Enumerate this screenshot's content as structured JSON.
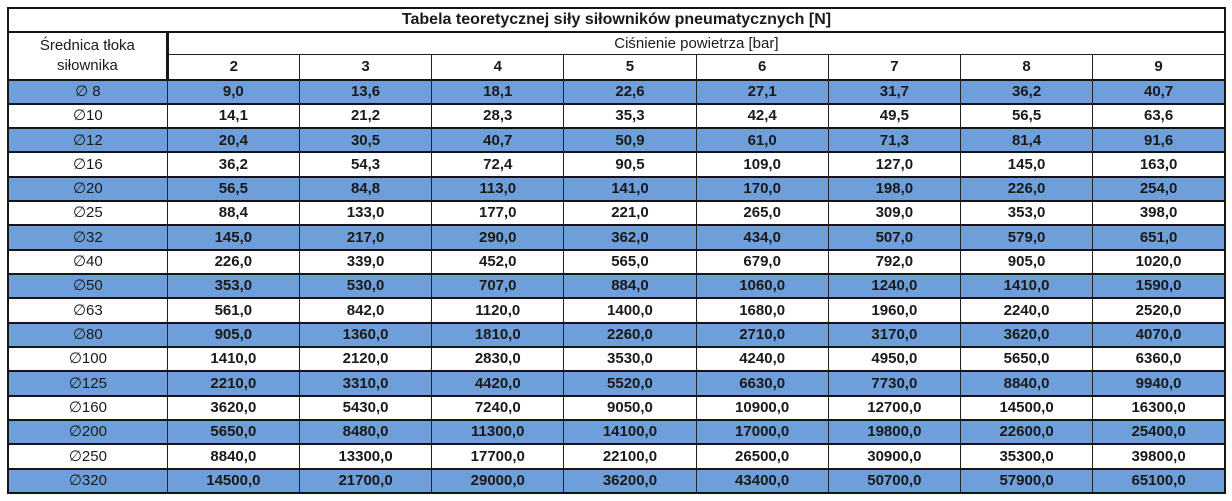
{
  "colors": {
    "row_highlight": "#6E9FDA",
    "border": "#151515",
    "text": "#1a1a1a",
    "background": "#ffffff"
  },
  "chart_data": {
    "type": "table",
    "title": "Tabela teoretycznej siły siłowników pneumatycznych [N]",
    "row_axis_label": "Średnica tłoka siłownika",
    "col_axis_label": "Ciśnienie powietrza [bar]",
    "columns": [
      "2",
      "3",
      "4",
      "5",
      "6",
      "7",
      "8",
      "9"
    ],
    "rows": [
      {
        "label": "∅ 8",
        "highlighted": true,
        "values": [
          "9,0",
          "13,6",
          "18,1",
          "22,6",
          "27,1",
          "31,7",
          "36,2",
          "40,7"
        ]
      },
      {
        "label": "∅10",
        "highlighted": false,
        "values": [
          "14,1",
          "21,2",
          "28,3",
          "35,3",
          "42,4",
          "49,5",
          "56,5",
          "63,6"
        ]
      },
      {
        "label": "∅12",
        "highlighted": true,
        "values": [
          "20,4",
          "30,5",
          "40,7",
          "50,9",
          "61,0",
          "71,3",
          "81,4",
          "91,6"
        ]
      },
      {
        "label": "∅16",
        "highlighted": false,
        "values": [
          "36,2",
          "54,3",
          "72,4",
          "90,5",
          "109,0",
          "127,0",
          "145,0",
          "163,0"
        ]
      },
      {
        "label": "∅20",
        "highlighted": true,
        "values": [
          "56,5",
          "84,8",
          "113,0",
          "141,0",
          "170,0",
          "198,0",
          "226,0",
          "254,0"
        ]
      },
      {
        "label": "∅25",
        "highlighted": false,
        "values": [
          "88,4",
          "133,0",
          "177,0",
          "221,0",
          "265,0",
          "309,0",
          "353,0",
          "398,0"
        ]
      },
      {
        "label": "∅32",
        "highlighted": true,
        "values": [
          "145,0",
          "217,0",
          "290,0",
          "362,0",
          "434,0",
          "507,0",
          "579,0",
          "651,0"
        ]
      },
      {
        "label": "∅40",
        "highlighted": false,
        "values": [
          "226,0",
          "339,0",
          "452,0",
          "565,0",
          "679,0",
          "792,0",
          "905,0",
          "1020,0"
        ]
      },
      {
        "label": "∅50",
        "highlighted": true,
        "values": [
          "353,0",
          "530,0",
          "707,0",
          "884,0",
          "1060,0",
          "1240,0",
          "1410,0",
          "1590,0"
        ]
      },
      {
        "label": "∅63",
        "highlighted": false,
        "values": [
          "561,0",
          "842,0",
          "1120,0",
          "1400,0",
          "1680,0",
          "1960,0",
          "2240,0",
          "2520,0"
        ]
      },
      {
        "label": "∅80",
        "highlighted": true,
        "values": [
          "905,0",
          "1360,0",
          "1810,0",
          "2260,0",
          "2710,0",
          "3170,0",
          "3620,0",
          "4070,0"
        ]
      },
      {
        "label": "∅100",
        "highlighted": false,
        "values": [
          "1410,0",
          "2120,0",
          "2830,0",
          "3530,0",
          "4240,0",
          "4950,0",
          "5650,0",
          "6360,0"
        ]
      },
      {
        "label": "∅125",
        "highlighted": true,
        "values": [
          "2210,0",
          "3310,0",
          "4420,0",
          "5520,0",
          "6630,0",
          "7730,0",
          "8840,0",
          "9940,0"
        ]
      },
      {
        "label": "∅160",
        "highlighted": false,
        "values": [
          "3620,0",
          "5430,0",
          "7240,0",
          "9050,0",
          "10900,0",
          "12700,0",
          "14500,0",
          "16300,0"
        ]
      },
      {
        "label": "∅200",
        "highlighted": true,
        "values": [
          "5650,0",
          "8480,0",
          "11300,0",
          "14100,0",
          "17000,0",
          "19800,0",
          "22600,0",
          "25400,0"
        ]
      },
      {
        "label": "∅250",
        "highlighted": false,
        "values": [
          "8840,0",
          "13300,0",
          "17700,0",
          "22100,0",
          "26500,0",
          "30900,0",
          "35300,0",
          "39800,0"
        ]
      },
      {
        "label": "∅320",
        "highlighted": true,
        "values": [
          "14500,0",
          "21700,0",
          "29000,0",
          "36200,0",
          "43400,0",
          "50700,0",
          "57900,0",
          "65100,0"
        ]
      }
    ]
  }
}
